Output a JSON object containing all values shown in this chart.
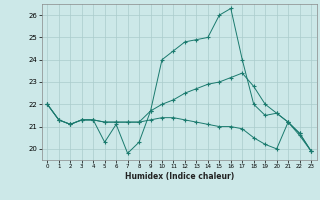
{
  "xlabel": "Humidex (Indice chaleur)",
  "background_color": "#cce8e8",
  "grid_color": "#aacccc",
  "line_color": "#1a7a6e",
  "xlim": [
    -0.5,
    23.5
  ],
  "ylim": [
    19.5,
    26.5
  ],
  "xticks": [
    0,
    1,
    2,
    3,
    4,
    5,
    6,
    7,
    8,
    9,
    10,
    11,
    12,
    13,
    14,
    15,
    16,
    17,
    18,
    19,
    20,
    21,
    22,
    23
  ],
  "yticks": [
    20,
    21,
    22,
    23,
    24,
    25,
    26
  ],
  "line1_x": [
    0,
    1,
    2,
    3,
    4,
    5,
    6,
    7,
    8,
    9,
    10,
    11,
    12,
    13,
    14,
    15,
    16,
    17,
    18,
    19,
    20,
    21,
    22,
    23
  ],
  "line1_y": [
    22.0,
    21.3,
    21.1,
    21.3,
    21.3,
    20.3,
    21.1,
    19.8,
    20.3,
    21.7,
    24.0,
    24.4,
    24.8,
    24.9,
    25.0,
    26.0,
    26.3,
    24.0,
    22.0,
    21.5,
    21.6,
    21.2,
    20.7,
    19.9
  ],
  "line2_x": [
    0,
    1,
    2,
    3,
    4,
    5,
    6,
    7,
    8,
    9,
    10,
    11,
    12,
    13,
    14,
    15,
    16,
    17,
    18,
    19,
    20,
    21,
    22,
    23
  ],
  "line2_y": [
    22.0,
    21.3,
    21.1,
    21.3,
    21.3,
    21.2,
    21.2,
    21.2,
    21.2,
    21.7,
    22.0,
    22.2,
    22.5,
    22.7,
    22.9,
    23.0,
    23.2,
    23.4,
    22.8,
    22.0,
    21.6,
    21.2,
    20.7,
    19.9
  ],
  "line3_x": [
    0,
    1,
    2,
    3,
    4,
    5,
    6,
    7,
    8,
    9,
    10,
    11,
    12,
    13,
    14,
    15,
    16,
    17,
    18,
    19,
    20,
    21,
    22,
    23
  ],
  "line3_y": [
    22.0,
    21.3,
    21.1,
    21.3,
    21.3,
    21.2,
    21.2,
    21.2,
    21.2,
    21.3,
    21.4,
    21.4,
    21.3,
    21.2,
    21.1,
    21.0,
    21.0,
    20.9,
    20.5,
    20.2,
    20.0,
    21.2,
    20.6,
    19.9
  ]
}
